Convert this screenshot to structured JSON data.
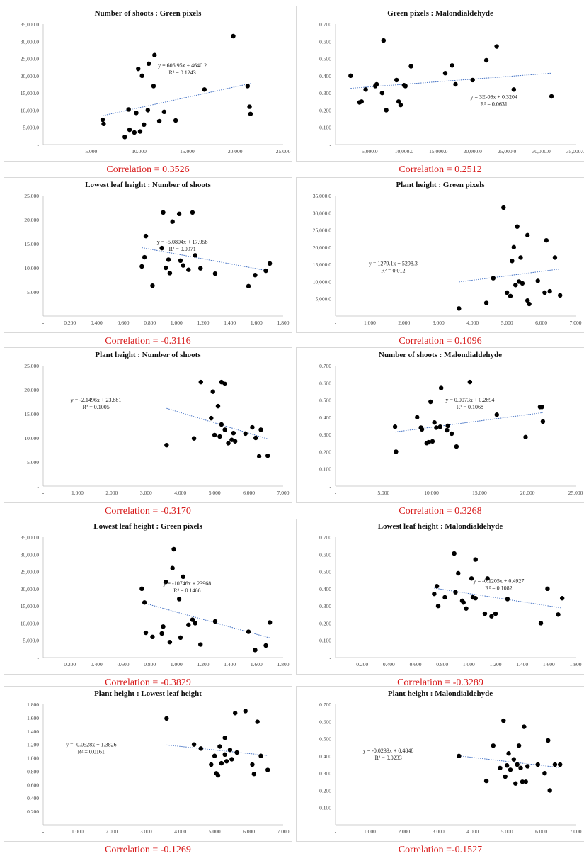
{
  "chart_data": [
    {
      "type": "scatter",
      "title": "Number of shoots : Green pixels",
      "correlation": "Correlation = 0.3526",
      "equation": "y = 606.95x + 4640.2",
      "r2": "R² = 0.1243",
      "xlim": [
        0,
        25
      ],
      "ylim": [
        0,
        35000
      ],
      "xticks": [
        "-",
        "5.000",
        "10.000",
        "15.000",
        "20.000",
        "25.000"
      ],
      "yticks": [
        "-",
        "5,000.0",
        "10,000.0",
        "15,000.0",
        "20,000.0",
        "25,000.0",
        "30,000.0",
        "35,000.0"
      ],
      "trend": {
        "slope": 606.95,
        "intercept": 4640.2
      },
      "points": [
        [
          6.2,
          7200
        ],
        [
          6.3,
          6000
        ],
        [
          8.5,
          2200
        ],
        [
          8.9,
          10200
        ],
        [
          9.0,
          4300
        ],
        [
          9.5,
          3500
        ],
        [
          9.7,
          9200
        ],
        [
          9.9,
          22000
        ],
        [
          10.1,
          3800
        ],
        [
          10.3,
          20000
        ],
        [
          10.5,
          5800
        ],
        [
          10.9,
          10000
        ],
        [
          11.0,
          23500
        ],
        [
          11.6,
          26000
        ],
        [
          11.5,
          17000
        ],
        [
          12.1,
          6800
        ],
        [
          12.6,
          9500
        ],
        [
          13.8,
          7000
        ],
        [
          16.8,
          16000
        ],
        [
          19.8,
          31500
        ],
        [
          21.3,
          17000
        ],
        [
          21.5,
          11000
        ],
        [
          21.6,
          8900
        ]
      ]
    },
    {
      "type": "scatter",
      "title": "Green pixels : Malondialdehyde",
      "correlation": "Correlation = 0.2512",
      "equation": "y = 3E-06x + 0.3204",
      "r2": "R² = 0.0631",
      "xlim": [
        0,
        35000
      ],
      "ylim": [
        0,
        0.7
      ],
      "xticks": [
        "-",
        "5,000.0",
        "10,000.0",
        "15,000.0",
        "20,000.0",
        "25,000.0",
        "30,000.0",
        "35,000.0"
      ],
      "yticks": [
        "-",
        "0.100",
        "0.200",
        "0.300",
        "0.400",
        "0.500",
        "0.600",
        "0.700"
      ],
      "trend": {
        "slope": 3e-06,
        "intercept": 0.3204
      },
      "points": [
        [
          2200,
          0.4
        ],
        [
          3500,
          0.245
        ],
        [
          3800,
          0.25
        ],
        [
          4400,
          0.32
        ],
        [
          5800,
          0.34
        ],
        [
          6000,
          0.35
        ],
        [
          6800,
          0.3
        ],
        [
          7000,
          0.605
        ],
        [
          7400,
          0.2
        ],
        [
          8900,
          0.375
        ],
        [
          9200,
          0.25
        ],
        [
          9500,
          0.23
        ],
        [
          10000,
          0.345
        ],
        [
          10200,
          0.34
        ],
        [
          11000,
          0.455
        ],
        [
          16000,
          0.415
        ],
        [
          17000,
          0.46
        ],
        [
          17500,
          0.35
        ],
        [
          20000,
          0.375
        ],
        [
          22000,
          0.49
        ],
        [
          23500,
          0.57
        ],
        [
          26000,
          0.32
        ],
        [
          31500,
          0.28
        ]
      ]
    },
    {
      "type": "scatter",
      "title": "Lowest leaf height : Number of shoots",
      "correlation": "Correlation = -0.3116",
      "equation": "y = -5.0804x + 17.958",
      "r2": "R² = 0.0971",
      "xlim": [
        0,
        1.8
      ],
      "ylim": [
        0,
        25
      ],
      "xticks": [
        "-",
        "0.200",
        "0.400",
        "0.600",
        "0.800",
        "1.000",
        "1.200",
        "1.400",
        "1.600",
        "1.800"
      ],
      "yticks": [
        "-",
        "5.000",
        "10.000",
        "15.000",
        "20.000",
        "25.000"
      ],
      "trend": {
        "slope": -5.0804,
        "intercept": 17.958
      },
      "points": [
        [
          0.74,
          10.3
        ],
        [
          0.76,
          12.2
        ],
        [
          0.77,
          16.6
        ],
        [
          0.82,
          6.3
        ],
        [
          0.89,
          14.1
        ],
        [
          0.9,
          21.5
        ],
        [
          0.92,
          10.0
        ],
        [
          0.94,
          11.7
        ],
        [
          0.95,
          8.9
        ],
        [
          0.97,
          19.6
        ],
        [
          1.02,
          21.2
        ],
        [
          1.03,
          11.5
        ],
        [
          1.05,
          10.5
        ],
        [
          1.09,
          9.6
        ],
        [
          1.12,
          21.5
        ],
        [
          1.14,
          12.6
        ],
        [
          1.18,
          9.9
        ],
        [
          1.29,
          8.8
        ],
        [
          1.54,
          6.2
        ],
        [
          1.59,
          8.5
        ],
        [
          1.67,
          9.4
        ],
        [
          1.7,
          10.9
        ]
      ]
    },
    {
      "type": "scatter",
      "title": "Plant height : Green pixels",
      "correlation": "Correlation = 0.1096",
      "equation": "y = 1279.1x + 5298.3",
      "r2": "R² = 0.012",
      "xlim": [
        0,
        7
      ],
      "ylim": [
        0,
        35000
      ],
      "xticks": [
        "-",
        "1.000",
        "2.000",
        "3.000",
        "4.000",
        "5.000",
        "6.000",
        "7.000"
      ],
      "yticks": [
        "-",
        "5,000.0",
        "10,000.0",
        "15,000.0",
        "20,000.0",
        "25,000.0",
        "30,000.0",
        "35,000.0"
      ],
      "trend": {
        "slope": 1279.1,
        "intercept": 5298.3
      },
      "points": [
        [
          3.6,
          2200
        ],
        [
          4.4,
          3800
        ],
        [
          4.6,
          11000
        ],
        [
          4.9,
          31500
        ],
        [
          5.0,
          6800
        ],
        [
          5.1,
          5800
        ],
        [
          5.15,
          16000
        ],
        [
          5.2,
          20000
        ],
        [
          5.25,
          9000
        ],
        [
          5.3,
          26000
        ],
        [
          5.35,
          10000
        ],
        [
          5.4,
          17000
        ],
        [
          5.45,
          9500
        ],
        [
          5.6,
          23500
        ],
        [
          5.6,
          4500
        ],
        [
          5.65,
          3500
        ],
        [
          5.9,
          10200
        ],
        [
          6.1,
          6800
        ],
        [
          6.15,
          22000
        ],
        [
          6.25,
          7200
        ],
        [
          6.4,
          17000
        ],
        [
          6.55,
          6000
        ]
      ]
    },
    {
      "type": "scatter",
      "title": "Plant height : Number of shoots",
      "correlation": "Correlation = -0.3170",
      "equation": "y = -2.1496x + 23.881",
      "r2": "R² = 0.1005",
      "xlim": [
        0,
        7
      ],
      "ylim": [
        0,
        25
      ],
      "xticks": [
        "-",
        "1.000",
        "2.000",
        "3.000",
        "4.000",
        "5.000",
        "6.000",
        "7.000"
      ],
      "yticks": [
        "-",
        "5.000",
        "10.000",
        "15.000",
        "20.000",
        "25.000"
      ],
      "trend": {
        "slope": -2.1496,
        "intercept": 23.881
      },
      "points": [
        [
          3.6,
          8.5
        ],
        [
          4.4,
          9.9
        ],
        [
          4.6,
          21.6
        ],
        [
          4.9,
          14.1
        ],
        [
          4.95,
          19.6
        ],
        [
          5.0,
          10.6
        ],
        [
          5.1,
          16.6
        ],
        [
          5.15,
          10.3
        ],
        [
          5.2,
          12.8
        ],
        [
          5.2,
          21.6
        ],
        [
          5.3,
          21.2
        ],
        [
          5.3,
          11.7
        ],
        [
          5.4,
          8.9
        ],
        [
          5.5,
          9.6
        ],
        [
          5.55,
          11.0
        ],
        [
          5.6,
          9.3
        ],
        [
          5.9,
          10.9
        ],
        [
          6.1,
          12.2
        ],
        [
          6.2,
          10.0
        ],
        [
          6.3,
          6.2
        ],
        [
          6.35,
          11.7
        ],
        [
          6.55,
          6.3
        ]
      ]
    },
    {
      "type": "scatter",
      "title": "Number of shoots : Malondialdehyde",
      "correlation": "Correlation = 0.3268",
      "equation": "y = 0.0073x + 0.2694",
      "r2": "R² = 0.1068",
      "xlim": [
        0,
        25
      ],
      "ylim": [
        0,
        0.7
      ],
      "xticks": [
        "-",
        "5.000",
        "10.000",
        "15.000",
        "20.000",
        "25.000"
      ],
      "yticks": [
        "-",
        "0.100",
        "0.200",
        "0.300",
        "0.400",
        "0.500",
        "0.600",
        "0.700"
      ],
      "trend": {
        "slope": 0.0073,
        "intercept": 0.2694
      },
      "points": [
        [
          6.2,
          0.345
        ],
        [
          6.3,
          0.2
        ],
        [
          8.5,
          0.4
        ],
        [
          8.9,
          0.34
        ],
        [
          9.0,
          0.33
        ],
        [
          9.5,
          0.25
        ],
        [
          9.7,
          0.255
        ],
        [
          9.9,
          0.49
        ],
        [
          10.1,
          0.26
        ],
        [
          10.3,
          0.37
        ],
        [
          10.5,
          0.34
        ],
        [
          10.9,
          0.345
        ],
        [
          11.0,
          0.57
        ],
        [
          11.6,
          0.325
        ],
        [
          11.7,
          0.35
        ],
        [
          12.1,
          0.305
        ],
        [
          12.6,
          0.23
        ],
        [
          14.0,
          0.605
        ],
        [
          16.8,
          0.415
        ],
        [
          19.8,
          0.285
        ],
        [
          21.3,
          0.46
        ],
        [
          21.5,
          0.46
        ],
        [
          21.6,
          0.375
        ]
      ]
    },
    {
      "type": "scatter",
      "title": "Lowest leaf height : Green pixels",
      "correlation": "Correlation = -0.3829",
      "equation": "y = -10746x + 23968",
      "r2": "R² = 0.1466",
      "xlim": [
        0,
        1.8
      ],
      "ylim": [
        0,
        35000
      ],
      "xticks": [
        "-",
        "0.200",
        "0.400",
        "0.600",
        "0.800",
        "1.000",
        "1.200",
        "1.400",
        "1.600",
        "1.800"
      ],
      "yticks": [
        "-",
        "5,000.0",
        "10,000.0",
        "15,000.0",
        "20,000.0",
        "25,000.0",
        "30,000.0",
        "35,000.0"
      ],
      "trend": {
        "slope": -10746,
        "intercept": 23968
      },
      "points": [
        [
          0.74,
          20000
        ],
        [
          0.76,
          16000
        ],
        [
          0.77,
          7200
        ],
        [
          0.82,
          6000
        ],
        [
          0.89,
          7000
        ],
        [
          0.9,
          9000
        ],
        [
          0.92,
          22000
        ],
        [
          0.95,
          4500
        ],
        [
          0.97,
          26000
        ],
        [
          0.98,
          31500
        ],
        [
          1.02,
          17000
        ],
        [
          1.03,
          5800
        ],
        [
          1.05,
          23500
        ],
        [
          1.09,
          9500
        ],
        [
          1.12,
          11000
        ],
        [
          1.14,
          10000
        ],
        [
          1.18,
          3800
        ],
        [
          1.29,
          10500
        ],
        [
          1.54,
          7500
        ],
        [
          1.59,
          2200
        ],
        [
          1.67,
          3500
        ],
        [
          1.7,
          10200
        ]
      ]
    },
    {
      "type": "scatter",
      "title": "Lowest leaf height : Malondialdehyde",
      "correlation": "Correlation = -0.3289",
      "equation": "y = -0.1205x + 0.4927",
      "r2": "R² = 0.1082",
      "xlim": [
        0,
        1.8
      ],
      "ylim": [
        0,
        0.7
      ],
      "xticks": [
        "-",
        "0.200",
        "0.400",
        "0.600",
        "0.800",
        "1.000",
        "1.200",
        "1.400",
        "1.600",
        "1.800"
      ],
      "yticks": [
        "-",
        "0.100",
        "0.200",
        "0.300",
        "0.400",
        "0.500",
        "0.600",
        "0.700"
      ],
      "trend": {
        "slope": -0.1205,
        "intercept": 0.4927
      },
      "points": [
        [
          0.74,
          0.37
        ],
        [
          0.76,
          0.415
        ],
        [
          0.77,
          0.3
        ],
        [
          0.82,
          0.35
        ],
        [
          0.89,
          0.605
        ],
        [
          0.9,
          0.38
        ],
        [
          0.92,
          0.49
        ],
        [
          0.95,
          0.33
        ],
        [
          0.96,
          0.32
        ],
        [
          0.98,
          0.285
        ],
        [
          1.02,
          0.46
        ],
        [
          1.03,
          0.35
        ],
        [
          1.05,
          0.57
        ],
        [
          1.05,
          0.345
        ],
        [
          1.12,
          0.255
        ],
        [
          1.14,
          0.46
        ],
        [
          1.17,
          0.24
        ],
        [
          1.2,
          0.255
        ],
        [
          1.29,
          0.34
        ],
        [
          1.54,
          0.2
        ],
        [
          1.59,
          0.4
        ],
        [
          1.67,
          0.25
        ],
        [
          1.7,
          0.345
        ]
      ]
    },
    {
      "type": "scatter",
      "title": "Plant height : Lowest leaf height",
      "correlation": "Correlation = -0.1269",
      "equation": "y = -0.0528x + 1.3826",
      "r2": "R² = 0.0161",
      "xlim": [
        0,
        7
      ],
      "ylim": [
        0,
        1.8
      ],
      "xticks": [
        "-",
        "1.000",
        "2.000",
        "3.000",
        "4.000",
        "5.000",
        "6.000",
        "7.000"
      ],
      "yticks": [
        "-",
        "0.200",
        "0.400",
        "0.600",
        "0.800",
        "1.000",
        "1.200",
        "1.400",
        "1.600",
        "1.800"
      ],
      "trend": {
        "slope": -0.0528,
        "intercept": 1.3826
      },
      "points": [
        [
          3.6,
          1.59
        ],
        [
          4.4,
          1.2
        ],
        [
          4.6,
          1.14
        ],
        [
          4.9,
          0.9
        ],
        [
          5.0,
          1.03
        ],
        [
          5.05,
          0.77
        ],
        [
          5.1,
          0.74
        ],
        [
          5.15,
          1.17
        ],
        [
          5.2,
          0.92
        ],
        [
          5.3,
          1.3
        ],
        [
          5.3,
          1.05
        ],
        [
          5.35,
          0.95
        ],
        [
          5.45,
          1.12
        ],
        [
          5.5,
          0.98
        ],
        [
          5.6,
          1.67
        ],
        [
          5.65,
          1.08
        ],
        [
          5.9,
          1.7
        ],
        [
          6.1,
          0.9
        ],
        [
          6.15,
          0.76
        ],
        [
          6.25,
          1.54
        ],
        [
          6.35,
          1.03
        ],
        [
          6.55,
          0.82
        ]
      ]
    },
    {
      "type": "scatter",
      "title": "Plant height : Malondialdehyde",
      "correlation": "Correlation =-0.1527",
      "equation": "y = -0.0233x + 0.4848",
      "r2": "R² = 0.0233",
      "xlim": [
        0,
        7
      ],
      "ylim": [
        0,
        0.7
      ],
      "xticks": [
        "-",
        "1.000",
        "2.000",
        "3.000",
        "4.000",
        "5.000",
        "6.000",
        "7.000"
      ],
      "yticks": [
        "-",
        "0.100",
        "0.200",
        "0.300",
        "0.400",
        "0.500",
        "0.600",
        "0.700"
      ],
      "trend": {
        "slope": -0.0233,
        "intercept": 0.4848
      },
      "points": [
        [
          3.6,
          0.4
        ],
        [
          4.4,
          0.255
        ],
        [
          4.6,
          0.46
        ],
        [
          4.8,
          0.33
        ],
        [
          4.9,
          0.605
        ],
        [
          4.95,
          0.28
        ],
        [
          5.0,
          0.345
        ],
        [
          5.05,
          0.415
        ],
        [
          5.1,
          0.32
        ],
        [
          5.2,
          0.38
        ],
        [
          5.25,
          0.24
        ],
        [
          5.3,
          0.35
        ],
        [
          5.35,
          0.46
        ],
        [
          5.4,
          0.33
        ],
        [
          5.45,
          0.25
        ],
        [
          5.5,
          0.57
        ],
        [
          5.55,
          0.25
        ],
        [
          5.6,
          0.34
        ],
        [
          5.9,
          0.35
        ],
        [
          6.1,
          0.3
        ],
        [
          6.2,
          0.49
        ],
        [
          6.25,
          0.2
        ],
        [
          6.4,
          0.35
        ],
        [
          6.55,
          0.35
        ]
      ]
    }
  ]
}
